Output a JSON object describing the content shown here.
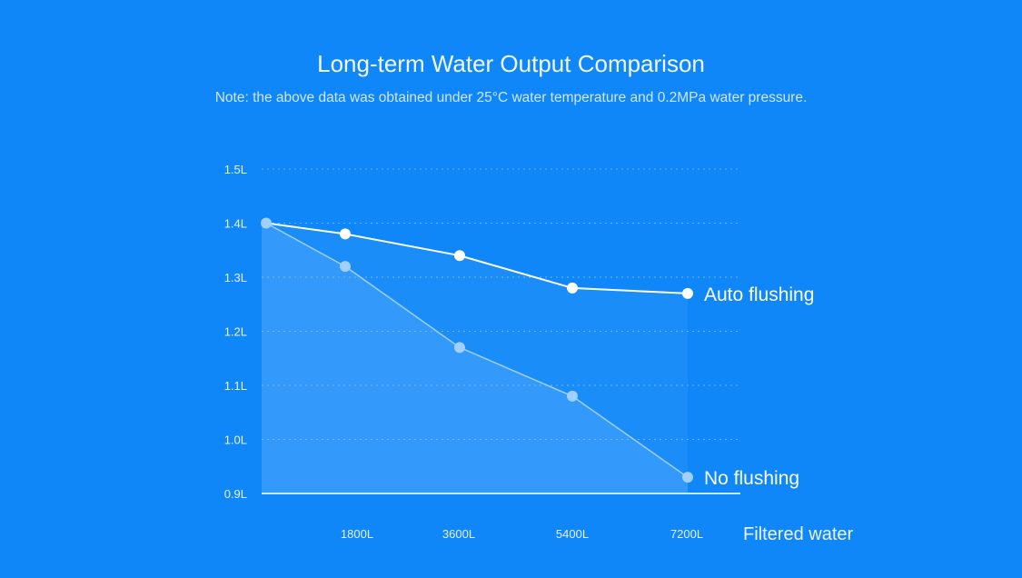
{
  "chart_data": {
    "type": "area",
    "title": "Long-term Water Output Comparison",
    "subtitle": "Note: the above data was obtained under 25°C water temperature and 0.2MPa water pressure.",
    "xlabel": "Filtered water",
    "ylabel": "",
    "x": [
      0,
      1800,
      3600,
      5400,
      7200
    ],
    "x_tick_labels": [
      "1800L",
      "3600L",
      "5400L",
      "7200L"
    ],
    "x_tick_values": [
      1800,
      3600,
      5400,
      7200
    ],
    "y_tick_labels": [
      "0.9L",
      "1.0L",
      "1.1L",
      "1.2L",
      "1.3L",
      "1.4L",
      "1.5L"
    ],
    "y_tick_values": [
      0.9,
      1.0,
      1.1,
      1.2,
      1.3,
      1.4,
      1.5
    ],
    "ylim": [
      0.9,
      1.5
    ],
    "grid": true,
    "series": [
      {
        "name": "Auto flushing",
        "values": [
          1.4,
          1.38,
          1.34,
          1.28,
          1.27
        ],
        "color": "#ffffff",
        "fill": "#1a8df9"
      },
      {
        "name": "No flushing",
        "values": [
          1.4,
          1.32,
          1.17,
          1.08,
          0.93
        ],
        "color": "#9fd0ff",
        "fill": "#3399fa"
      }
    ]
  },
  "colors": {
    "background": "#0f87f8"
  }
}
